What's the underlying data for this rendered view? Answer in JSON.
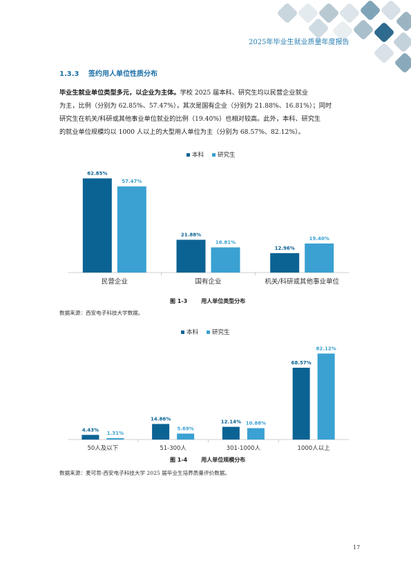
{
  "header": {
    "title": "2025年毕业生就业质量年度报告"
  },
  "section": {
    "number": "1.3.3",
    "title": "签约用人单位性质分布"
  },
  "paragraph": {
    "lines": [
      {
        "lead": "毕业生就业单位类型多元，以企业为主体。",
        "text": "学校 2025 届本科、研究生均以民营企业就业"
      },
      {
        "lead": "",
        "text": "为主，比例（分别为 62.85%、57.47%），其次是国有企业（分别为 21.88%、16.81%）；同时"
      },
      {
        "lead": "",
        "text": "研究生在机关/科研或其他事业单位就业的比例（19.40%）也相对较高。此外，本科、研究生"
      },
      {
        "lead": "",
        "text": "的就业单位规模均以 1000 人以上的大型用人单位为主（分别为 68.57%、82.12%）。"
      }
    ]
  },
  "chart_data": [
    {
      "type": "bar",
      "categories": [
        "民营企业",
        "国有企业",
        "机关/科研或其他事业单位"
      ],
      "series": [
        {
          "name": "本科",
          "values": [
            62.85,
            21.88,
            12.96
          ],
          "labels": [
            "62.85%",
            "21.88%",
            "12.96%"
          ],
          "color": "#0b6394"
        },
        {
          "name": "研究生",
          "values": [
            57.47,
            16.81,
            19.4
          ],
          "labels": [
            "57.47%",
            "16.81%",
            "19.40%"
          ],
          "color": "#3aa1d2"
        }
      ],
      "ylim": [
        0,
        70
      ]
    },
    {
      "type": "bar",
      "categories": [
        "50人及以下",
        "51-300人",
        "301-1000人",
        "1000人以上"
      ],
      "series": [
        {
          "name": "本科",
          "values": [
            4.43,
            14.86,
            12.14,
            68.57
          ],
          "labels": [
            "4.43%",
            "14.86%",
            "12.14%",
            "68.57%"
          ],
          "color": "#0b6394"
        },
        {
          "name": "研究生",
          "values": [
            1.31,
            5.69,
            10.88,
            82.12
          ],
          "labels": [
            "1.31%",
            "5.69%",
            "10.88%",
            "82.12%"
          ],
          "color": "#3aa1d2"
        }
      ],
      "ylim": [
        0,
        85
      ]
    }
  ],
  "figures": [
    {
      "number": "图 1-3",
      "title": "用人单位类型分布",
      "source": "数据来源：西安电子科技大学数据。"
    },
    {
      "number": "图 1-4",
      "title": "用人单位规模分布",
      "source": "数据来源：麦可思-西安电子科技大学 2025 届毕业生培养质量评价数据。"
    }
  ],
  "page_number": "17",
  "colors": {
    "accent": "#1b6fa6",
    "series_primary": "#0b6394",
    "series_secondary": "#3aa1d2"
  }
}
